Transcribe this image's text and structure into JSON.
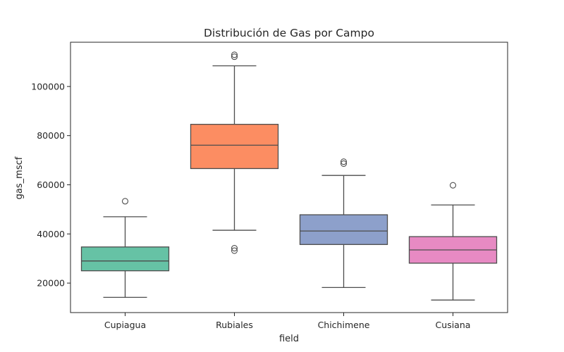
{
  "chart_data": {
    "type": "box",
    "title": "Distribución de Gas por Campo",
    "xlabel": "field",
    "ylabel": "gas_mscf",
    "ylim": [
      8000,
      118000
    ],
    "yticks": [
      20000,
      40000,
      60000,
      80000,
      100000
    ],
    "grid": false,
    "categories": [
      "Cupiagua",
      "Rubiales",
      "Chichimene",
      "Cusiana"
    ],
    "colors": [
      "#66c2a5",
      "#fc8d62",
      "#8da0cb",
      "#e78ac3"
    ],
    "boxes": [
      {
        "category": "Cupiagua",
        "whisker_low": 14200,
        "q1": 25000,
        "median": 29000,
        "q3": 34700,
        "whisker_high": 47000,
        "outliers": [
          53300
        ]
      },
      {
        "category": "Rubiales",
        "whisker_low": 41500,
        "q1": 66600,
        "median": 76100,
        "q3": 84600,
        "whisker_high": 108400,
        "outliers": [
          33200,
          34200,
          112100,
          112900
        ]
      },
      {
        "category": "Chichimene",
        "whisker_low": 18200,
        "q1": 35700,
        "median": 41200,
        "q3": 47800,
        "whisker_high": 63800,
        "outliers": [
          68600,
          69400
        ]
      },
      {
        "category": "Cusiana",
        "whisker_low": 13100,
        "q1": 28100,
        "median": 33500,
        "q3": 38900,
        "whisker_high": 51800,
        "outliers": [
          59800
        ]
      }
    ]
  }
}
